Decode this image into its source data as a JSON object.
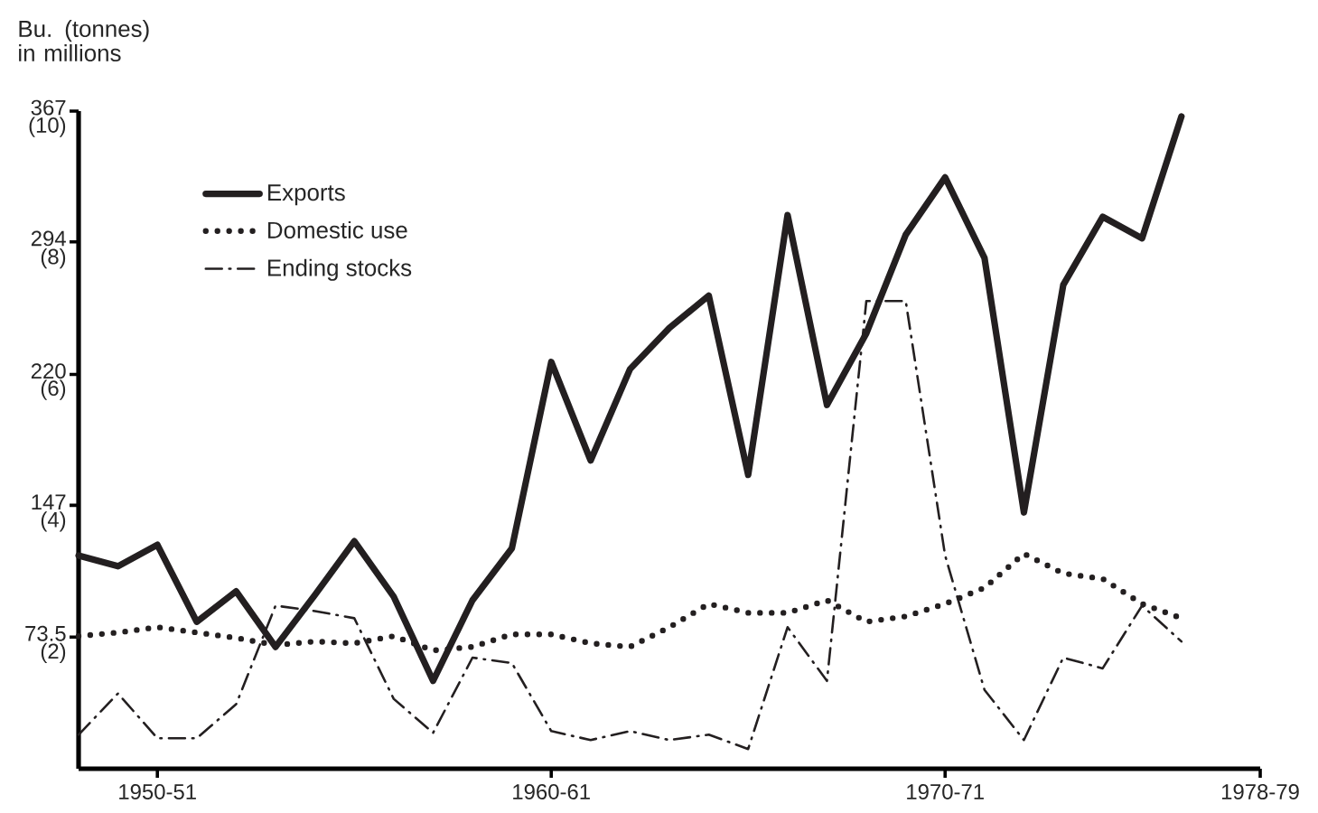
{
  "chart_data": {
    "type": "line",
    "y2label": "Bu. (tonnes) in millions",
    "categories": [
      null,
      null,
      "1950-51",
      null,
      null,
      null,
      null,
      null,
      null,
      null,
      null,
      null,
      "1960-61",
      null,
      null,
      null,
      null,
      null,
      null,
      null,
      null,
      null,
      "1970-71",
      null,
      null,
      null,
      null,
      null,
      null,
      null,
      "1978-79"
    ],
    "series": [
      {
        "name": "Exports",
        "color": "#231f20",
        "line_style": "solid",
        "values": [
          119,
          113,
          125,
          82,
          99,
          68,
          97,
          127,
          96,
          49,
          94,
          123,
          227,
          172,
          223,
          246,
          264,
          164,
          309,
          203,
          243,
          298,
          330,
          285,
          143,
          270,
          308,
          296,
          364,
          null,
          null
        ]
      },
      {
        "name": "Domestic use",
        "color": "#231f20",
        "line_style": "dotted",
        "values": [
          74,
          76,
          79,
          76,
          73,
          69,
          71,
          70,
          74,
          66,
          68,
          75,
          75,
          70,
          68,
          79,
          92,
          87,
          87,
          94,
          82,
          85,
          92,
          101,
          120,
          109,
          106,
          92,
          84,
          null,
          null
        ]
      },
      {
        "name": "Ending stocks",
        "color": "#231f20",
        "line_style": "dashdotted",
        "values": [
          19,
          42,
          17,
          17,
          36,
          91,
          88,
          84,
          39,
          20,
          62,
          59,
          21,
          16,
          21,
          16,
          19,
          11,
          79,
          49,
          261,
          261,
          119,
          44,
          16,
          62,
          56,
          91,
          71,
          null,
          null
        ]
      }
    ],
    "ylim": [
      0,
      367
    ],
    "yticks": [
      73.5,
      147,
      220,
      294,
      367
    ],
    "y2lim": [
      0,
      10
    ],
    "y2ticks": [
      {
        "value": 2,
        "label": "(2)"
      },
      {
        "value": 4,
        "label": "(4)"
      },
      {
        "value": 6,
        "label": "(6)"
      },
      {
        "value": 8,
        "label": "(8)"
      },
      {
        "value": 10,
        "label": "(10)"
      }
    ],
    "legend": "top left"
  }
}
